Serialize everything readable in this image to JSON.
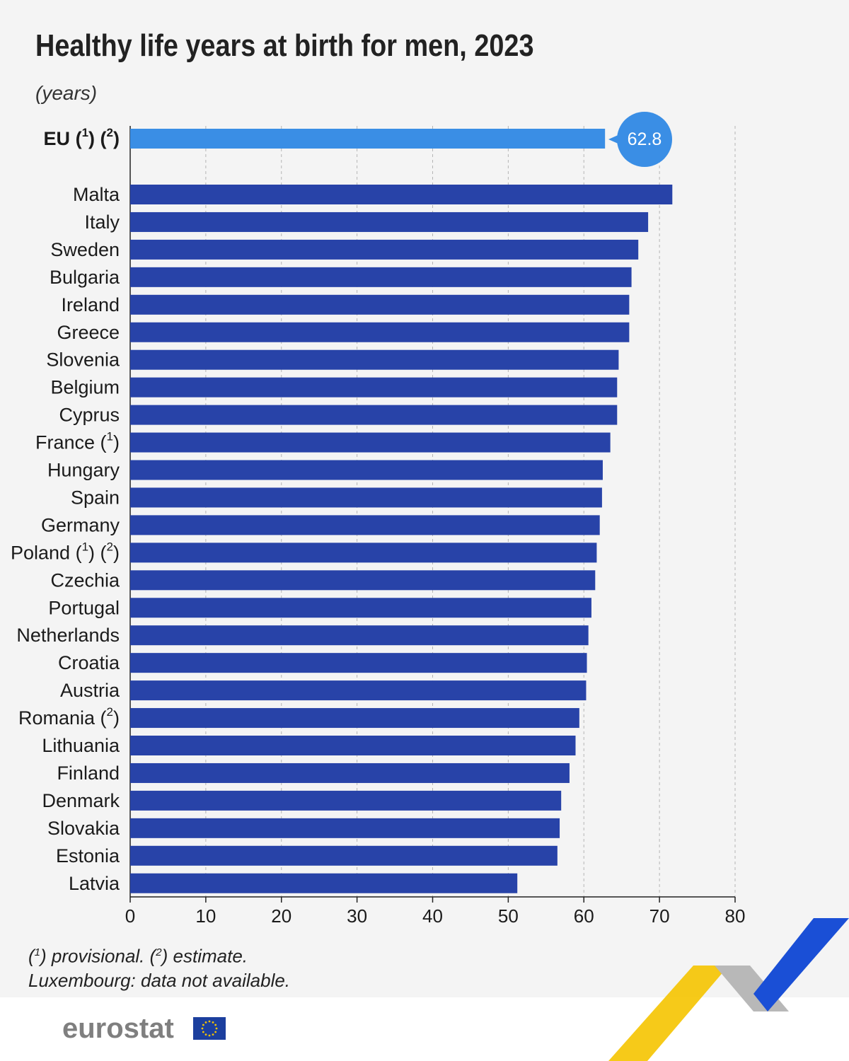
{
  "title": "Healthy life years at birth for men, 2023",
  "unit": "(years)",
  "notes": {
    "line1_p1": "(",
    "line1_sup1": "1",
    "line1_p2": ") provisional. (",
    "line1_sup2": "2",
    "line1_p3": ") estimate.",
    "line2": "Luxembourg: data not available."
  },
  "logo": {
    "text": "eurostat"
  },
  "colors": {
    "eu_bar": "#3a8ee5",
    "country_bar": "#2843a8",
    "callout": "#3a8ee5",
    "grid": "#b5b5b5",
    "deco_yellow": "#f5c400",
    "deco_grey": "#b0b0b0",
    "deco_blue": "#1a4fd6"
  },
  "chart_data": {
    "type": "bar",
    "orientation": "horizontal",
    "xlim": [
      0,
      80
    ],
    "xticks": [
      0,
      10,
      20,
      30,
      40,
      50,
      60,
      70,
      80
    ],
    "grid": true,
    "highlight": {
      "name": "EU",
      "notes": [
        "1",
        "2"
      ],
      "value": 62.8,
      "callout": "62.8"
    },
    "series": [
      {
        "values": [
          71.7,
          68.5,
          67.2,
          66.3,
          66.0,
          66.0,
          64.6,
          64.4,
          64.4,
          63.5,
          62.5,
          62.4,
          62.1,
          61.7,
          61.5,
          61.0,
          60.6,
          60.4,
          60.3,
          59.4,
          58.9,
          58.1,
          57.0,
          56.8,
          56.5,
          51.2
        ]
      }
    ],
    "categories": [
      {
        "name": "Malta",
        "notes": []
      },
      {
        "name": "Italy",
        "notes": []
      },
      {
        "name": "Sweden",
        "notes": []
      },
      {
        "name": "Bulgaria",
        "notes": []
      },
      {
        "name": "Ireland",
        "notes": []
      },
      {
        "name": "Greece",
        "notes": []
      },
      {
        "name": "Slovenia",
        "notes": []
      },
      {
        "name": "Belgium",
        "notes": []
      },
      {
        "name": "Cyprus",
        "notes": []
      },
      {
        "name": "France",
        "notes": [
          "1"
        ]
      },
      {
        "name": "Hungary",
        "notes": []
      },
      {
        "name": "Spain",
        "notes": []
      },
      {
        "name": "Germany",
        "notes": []
      },
      {
        "name": "Poland",
        "notes": [
          "1",
          "2"
        ]
      },
      {
        "name": "Czechia",
        "notes": []
      },
      {
        "name": "Portugal",
        "notes": []
      },
      {
        "name": "Netherlands",
        "notes": []
      },
      {
        "name": "Croatia",
        "notes": []
      },
      {
        "name": "Austria",
        "notes": []
      },
      {
        "name": "Romania",
        "notes": [
          "2"
        ]
      },
      {
        "name": "Lithuania",
        "notes": []
      },
      {
        "name": "Finland",
        "notes": []
      },
      {
        "name": "Denmark",
        "notes": []
      },
      {
        "name": "Slovakia",
        "notes": []
      },
      {
        "name": "Estonia",
        "notes": []
      },
      {
        "name": "Latvia",
        "notes": []
      }
    ]
  }
}
